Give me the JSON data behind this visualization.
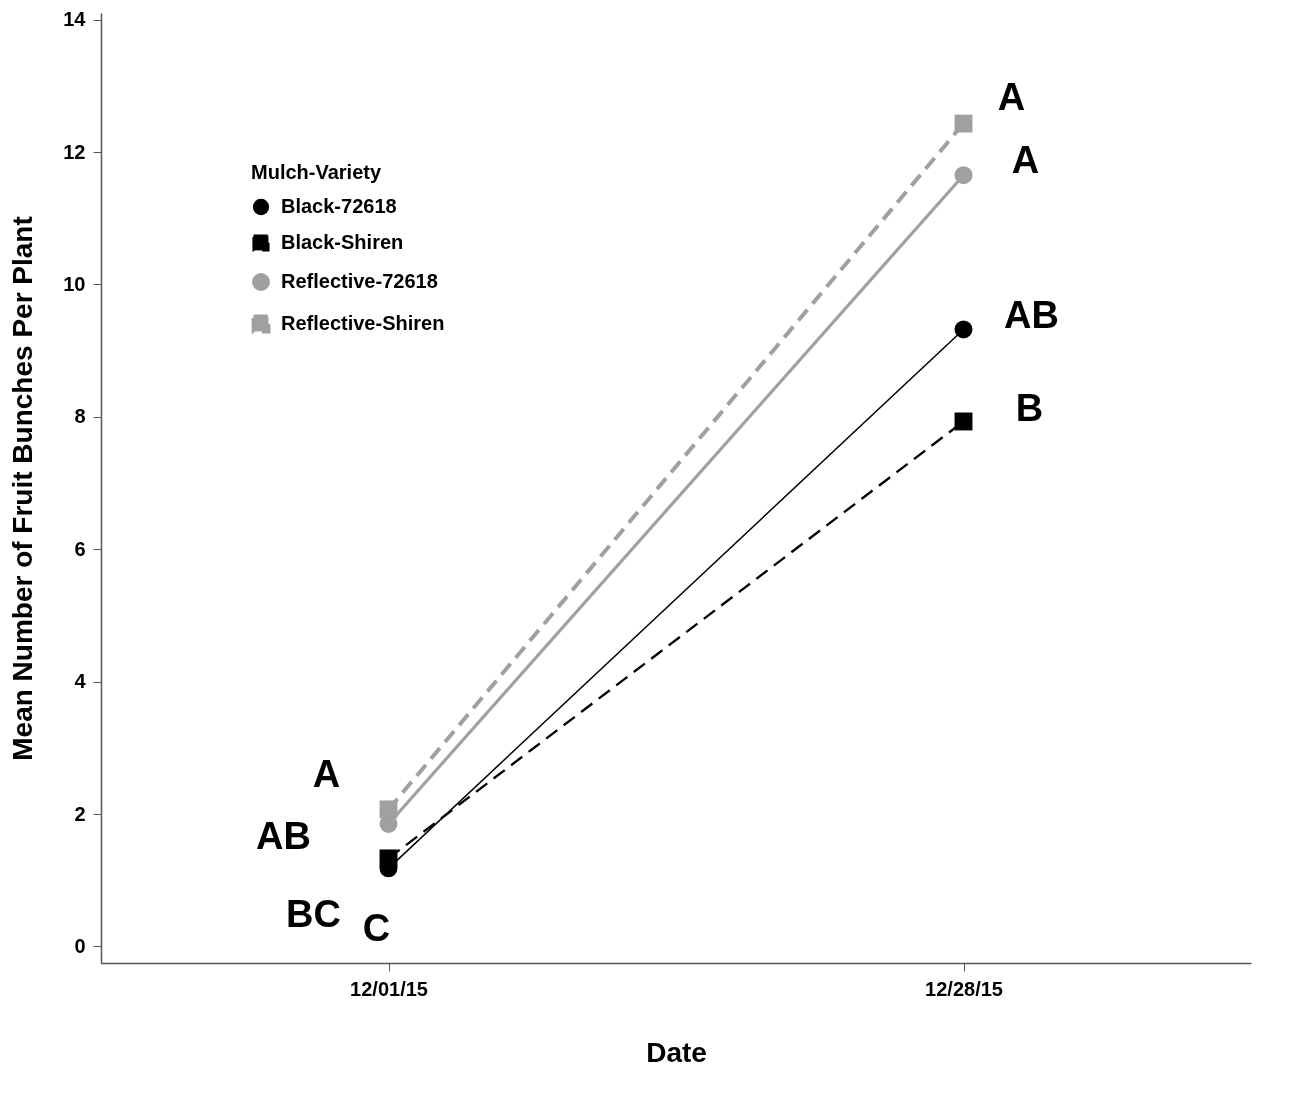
{
  "chart_data": {
    "type": "line",
    "xlabel": "Date",
    "ylabel": "Mean Number of Fruit Bunches Per Plant",
    "legend_title": "Mulch-Variety",
    "categories": [
      "12/01/15",
      "12/28/15"
    ],
    "series": [
      {
        "name": "Black-72618",
        "color": "#000000",
        "values": [
          1.18,
          9.32
        ],
        "marker": "circle",
        "line_style": "solid"
      },
      {
        "name": "Black-Shiren",
        "color": "#000000",
        "values": [
          1.33,
          7.93
        ],
        "marker": "square",
        "line_style": "dashed"
      },
      {
        "name": "Reflective-72618",
        "color": "#a0a0a0",
        "values": [
          1.85,
          11.65
        ],
        "marker": "circle",
        "line_style": "solid"
      },
      {
        "name": "Reflective-Shiren",
        "color": "#a0a0a0",
        "values": [
          2.07,
          12.43
        ],
        "marker": "square",
        "line_style": "dashed"
      }
    ],
    "ylim": [
      -0.25,
      14.1
    ],
    "yticks": [
      0,
      2,
      4,
      6,
      8,
      10,
      12,
      14
    ],
    "grid": false,
    "legend": "top left",
    "annotations": [
      {
        "text": "A",
        "x": "12/01/15",
        "y": 2.07
      },
      {
        "text": "AB",
        "x": "12/01/15",
        "y": 1.85
      },
      {
        "text": "BC",
        "x": "12/01/15",
        "y": 1.33
      },
      {
        "text": "C",
        "x": "12/01/15",
        "y": 1.18
      },
      {
        "text": "A",
        "x": "12/28/15",
        "y": 12.43
      },
      {
        "text": "A",
        "x": "12/28/15",
        "y": 11.65
      },
      {
        "text": "AB",
        "x": "12/28/15",
        "y": 9.32
      },
      {
        "text": "B",
        "x": "12/28/15",
        "y": 7.93
      }
    ]
  }
}
